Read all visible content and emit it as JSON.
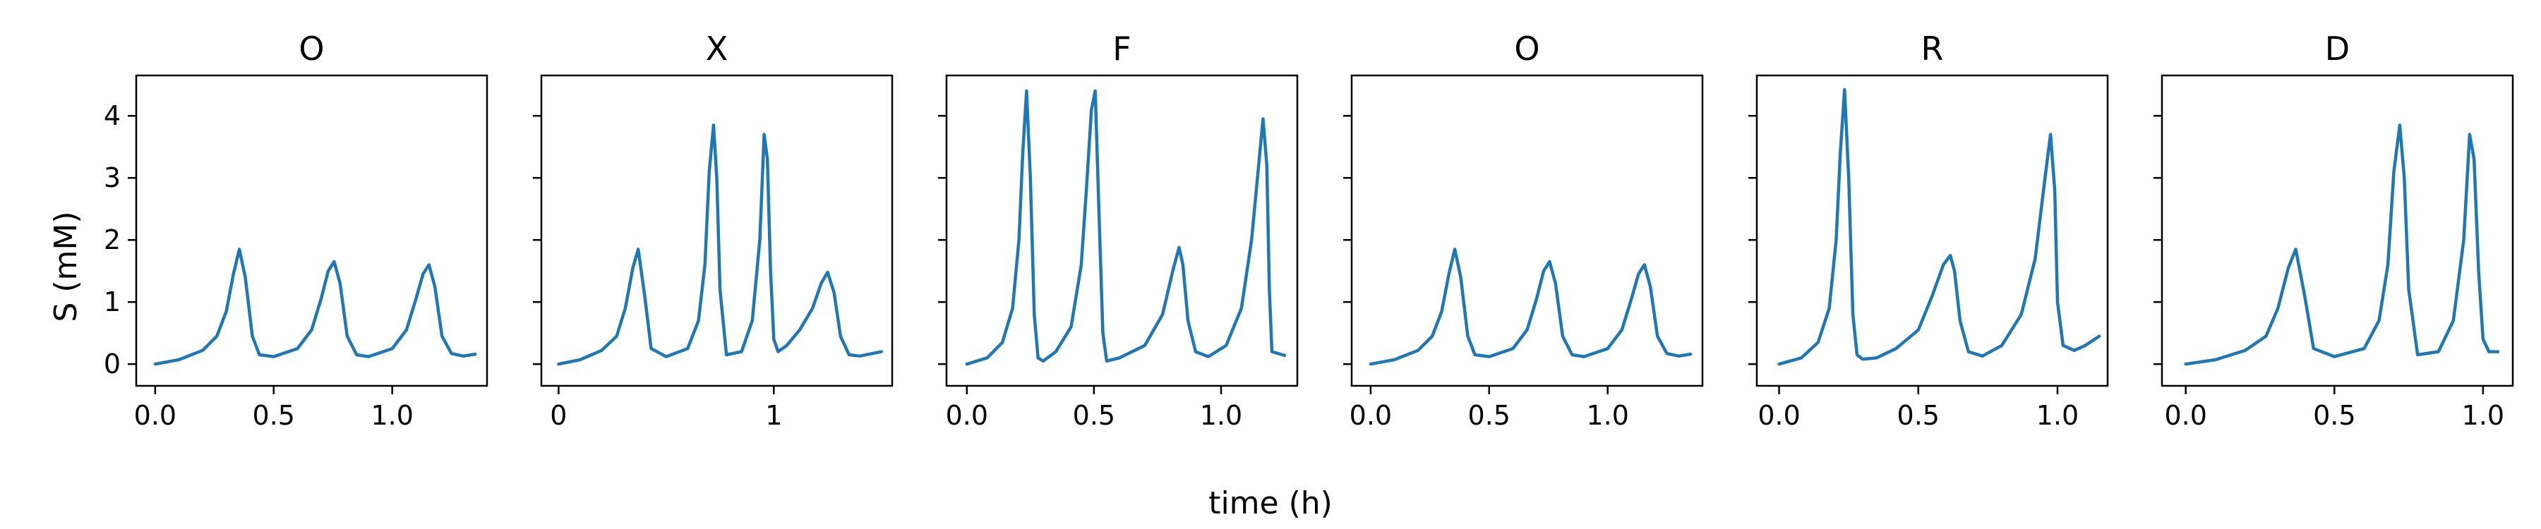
{
  "chart_data": {
    "type": "line",
    "xlabel": "time (h)",
    "ylabel": "S (mM)",
    "ylim": [
      -0.35,
      4.65
    ],
    "yticks": [
      0,
      1,
      2,
      3,
      4
    ],
    "grid": false,
    "legend": "none",
    "colors": {
      "line": "#1f77b4"
    },
    "panels": [
      {
        "title": "O",
        "xlim": [
          -0.08,
          1.4
        ],
        "xticks": [
          0.0,
          0.5,
          1.0
        ],
        "xtick_labels": [
          "0.0",
          "0.5",
          "1.0"
        ],
        "x": [
          0.0,
          0.1,
          0.2,
          0.26,
          0.3,
          0.33,
          0.355,
          0.38,
          0.41,
          0.44,
          0.5,
          0.6,
          0.66,
          0.7,
          0.73,
          0.755,
          0.78,
          0.81,
          0.85,
          0.9,
          1.0,
          1.06,
          1.1,
          1.13,
          1.155,
          1.18,
          1.21,
          1.25,
          1.3,
          1.35
        ],
        "y": [
          0.0,
          0.07,
          0.22,
          0.45,
          0.85,
          1.45,
          1.85,
          1.4,
          0.45,
          0.15,
          0.12,
          0.25,
          0.55,
          1.05,
          1.5,
          1.65,
          1.3,
          0.45,
          0.15,
          0.12,
          0.25,
          0.55,
          1.05,
          1.45,
          1.6,
          1.25,
          0.45,
          0.17,
          0.13,
          0.16
        ]
      },
      {
        "title": "X",
        "xlim": [
          -0.08,
          1.55
        ],
        "xticks": [
          0,
          1
        ],
        "xtick_labels": [
          "0",
          "1"
        ],
        "x": [
          0.0,
          0.1,
          0.2,
          0.27,
          0.31,
          0.345,
          0.37,
          0.4,
          0.43,
          0.5,
          0.6,
          0.65,
          0.68,
          0.7,
          0.72,
          0.735,
          0.75,
          0.78,
          0.85,
          0.9,
          0.935,
          0.955,
          0.97,
          0.985,
          1.0,
          1.02,
          1.06,
          1.12,
          1.18,
          1.22,
          1.25,
          1.28,
          1.31,
          1.35,
          1.4,
          1.5
        ],
        "y": [
          0.0,
          0.07,
          0.22,
          0.45,
          0.9,
          1.55,
          1.85,
          1.1,
          0.25,
          0.12,
          0.25,
          0.7,
          1.6,
          3.1,
          3.85,
          3.0,
          1.2,
          0.15,
          0.2,
          0.7,
          2.0,
          3.7,
          3.3,
          1.5,
          0.4,
          0.2,
          0.3,
          0.55,
          0.9,
          1.3,
          1.48,
          1.15,
          0.45,
          0.15,
          0.13,
          0.2
        ]
      },
      {
        "title": "F",
        "xlim": [
          -0.08,
          1.3
        ],
        "xticks": [
          0.0,
          0.5,
          1.0
        ],
        "xtick_labels": [
          "0.0",
          "0.5",
          "1.0"
        ],
        "x": [
          0.0,
          0.08,
          0.14,
          0.18,
          0.205,
          0.22,
          0.235,
          0.25,
          0.265,
          0.28,
          0.3,
          0.35,
          0.41,
          0.45,
          0.47,
          0.49,
          0.505,
          0.52,
          0.535,
          0.55,
          0.6,
          0.7,
          0.77,
          0.81,
          0.835,
          0.85,
          0.87,
          0.9,
          0.95,
          1.02,
          1.08,
          1.12,
          1.15,
          1.165,
          1.18,
          1.19,
          1.2,
          1.25
        ],
        "y": [
          0.0,
          0.1,
          0.35,
          0.9,
          2.0,
          3.4,
          4.4,
          3.0,
          0.8,
          0.1,
          0.05,
          0.2,
          0.6,
          1.6,
          2.8,
          4.1,
          4.4,
          2.4,
          0.5,
          0.05,
          0.1,
          0.3,
          0.8,
          1.5,
          1.88,
          1.6,
          0.7,
          0.2,
          0.12,
          0.3,
          0.9,
          2.0,
          3.3,
          3.95,
          3.2,
          1.2,
          0.2,
          0.14
        ]
      },
      {
        "title": "O",
        "xlim": [
          -0.08,
          1.4
        ],
        "xticks": [
          0.0,
          0.5,
          1.0
        ],
        "xtick_labels": [
          "0.0",
          "0.5",
          "1.0"
        ],
        "x": [
          0.0,
          0.1,
          0.2,
          0.26,
          0.3,
          0.33,
          0.355,
          0.38,
          0.41,
          0.44,
          0.5,
          0.6,
          0.66,
          0.7,
          0.73,
          0.755,
          0.78,
          0.81,
          0.85,
          0.9,
          1.0,
          1.06,
          1.1,
          1.13,
          1.155,
          1.18,
          1.21,
          1.25,
          1.3,
          1.35
        ],
        "y": [
          0.0,
          0.07,
          0.22,
          0.45,
          0.85,
          1.45,
          1.85,
          1.4,
          0.45,
          0.15,
          0.12,
          0.25,
          0.55,
          1.05,
          1.5,
          1.65,
          1.3,
          0.45,
          0.15,
          0.12,
          0.25,
          0.55,
          1.05,
          1.45,
          1.6,
          1.25,
          0.45,
          0.17,
          0.13,
          0.16
        ]
      },
      {
        "title": "R",
        "xlim": [
          -0.08,
          1.18
        ],
        "xticks": [
          0.0,
          0.5,
          1.0
        ],
        "xtick_labels": [
          "0.0",
          "0.5",
          "1.0"
        ],
        "x": [
          0.0,
          0.08,
          0.14,
          0.18,
          0.205,
          0.22,
          0.235,
          0.25,
          0.265,
          0.28,
          0.3,
          0.35,
          0.42,
          0.5,
          0.55,
          0.59,
          0.615,
          0.63,
          0.65,
          0.68,
          0.73,
          0.8,
          0.87,
          0.92,
          0.955,
          0.975,
          0.99,
          1.0,
          1.02,
          1.06,
          1.1,
          1.15
        ],
        "y": [
          0.0,
          0.1,
          0.35,
          0.9,
          2.0,
          3.4,
          4.42,
          3.0,
          0.8,
          0.15,
          0.08,
          0.1,
          0.25,
          0.55,
          1.1,
          1.6,
          1.75,
          1.5,
          0.7,
          0.2,
          0.13,
          0.3,
          0.8,
          1.7,
          3.0,
          3.7,
          2.8,
          1.0,
          0.3,
          0.22,
          0.3,
          0.45
        ]
      },
      {
        "title": "D",
        "xlim": [
          -0.08,
          1.1
        ],
        "xticks": [
          0.0,
          0.5,
          1.0
        ],
        "xtick_labels": [
          "0.0",
          "0.5",
          "1.0"
        ],
        "x": [
          0.0,
          0.1,
          0.2,
          0.27,
          0.31,
          0.345,
          0.37,
          0.4,
          0.43,
          0.5,
          0.6,
          0.65,
          0.68,
          0.7,
          0.72,
          0.735,
          0.75,
          0.78,
          0.85,
          0.9,
          0.935,
          0.955,
          0.97,
          0.985,
          1.0,
          1.02,
          1.05
        ],
        "y": [
          0.0,
          0.07,
          0.22,
          0.45,
          0.9,
          1.55,
          1.85,
          1.1,
          0.25,
          0.12,
          0.25,
          0.7,
          1.6,
          3.1,
          3.85,
          3.0,
          1.2,
          0.15,
          0.2,
          0.7,
          2.0,
          3.7,
          3.3,
          1.5,
          0.4,
          0.2,
          0.2
        ]
      }
    ]
  }
}
